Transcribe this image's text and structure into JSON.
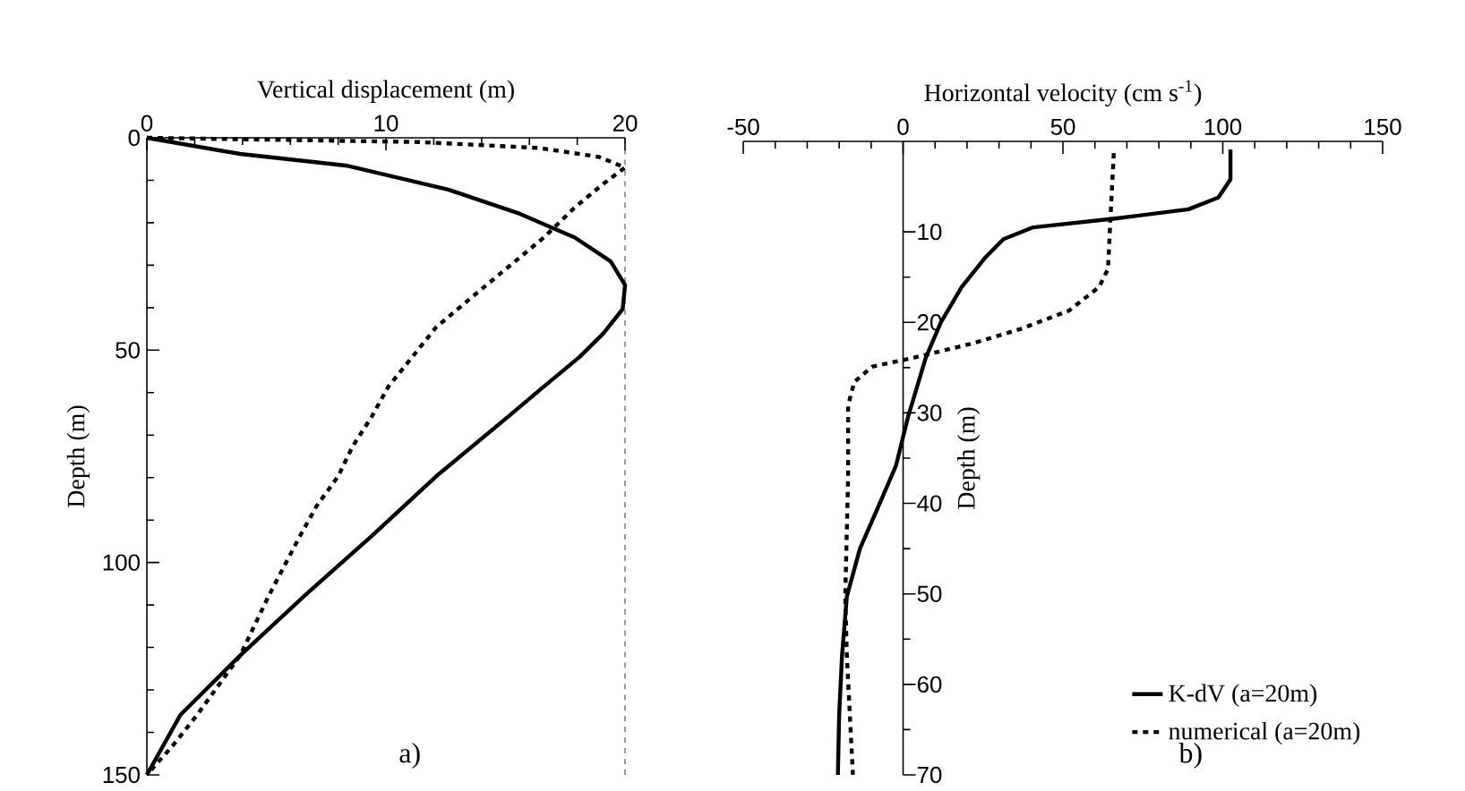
{
  "chart_data": [
    {
      "type": "line",
      "xlabel": "Vertical displacement (m)",
      "ylabel": "Depth (m)",
      "xlim": [
        0,
        20
      ],
      "xticks": [
        0,
        10,
        20
      ],
      "ylim": [
        150,
        0
      ],
      "yticks": [
        0,
        50,
        100,
        150
      ],
      "grid": false,
      "annotations": [
        "a)"
      ],
      "ref_lines": [
        {
          "axis": "x",
          "value": 20,
          "line_style": "dashed",
          "color": "#000000"
        }
      ],
      "series": [
        {
          "color": "#000000",
          "line_style": "solid",
          "x": [
            0,
            3.9,
            8.4,
            12.6,
            15.6,
            17.9,
            19.4,
            20,
            19.9,
            19.1,
            18.1,
            16.6,
            15.1,
            12.1,
            9.4,
            6.6,
            3.9,
            1.4,
            0
          ],
          "values": [
            0,
            3.8,
            6.6,
            12.2,
            17.9,
            23.5,
            29.1,
            34.7,
            40.3,
            46,
            51.6,
            58.6,
            65.7,
            79.7,
            93.8,
            107.8,
            121.9,
            135.9,
            150
          ]
        },
        {
          "color": "#000000",
          "line_style": "dashed",
          "x": [
            0,
            11.4,
            16.4,
            18.9,
            20,
            19.1,
            17.9,
            16.6,
            15.1,
            13.6,
            12.1,
            11.1,
            10.1,
            9.4,
            8.6,
            8,
            7.1,
            6.4,
            5.1,
            3.9,
            2.1,
            1.1,
            0
          ],
          "values": [
            0,
            1,
            2.4,
            4.5,
            7,
            10.8,
            16.4,
            23.5,
            30.5,
            37.5,
            44.6,
            51.6,
            58.6,
            65.7,
            72.7,
            79.7,
            86.7,
            93.8,
            107.8,
            121.9,
            135.9,
            143,
            150
          ]
        }
      ]
    },
    {
      "type": "line",
      "xlabel": "Horizontal velocity (cm s$^{-1}$)",
      "ylabel": "Depth (m)",
      "xlim": [
        -50,
        150
      ],
      "xticks": [
        -50,
        0,
        50,
        100,
        150
      ],
      "ylim": [
        70,
        0
      ],
      "yticks": [
        10,
        20,
        30,
        40,
        50,
        60,
        70
      ],
      "grid": false,
      "legend": "bottom right",
      "annotations": [
        "b)"
      ],
      "series": [
        {
          "name": "K-dV (a=20m)",
          "color": "#000000",
          "line_style": "solid",
          "x": [
            102.4,
            102.4,
            98.6,
            89.3,
            66.9,
            40.7,
            31.4,
            25.8,
            18.3,
            11.8,
            7.1,
            1.5,
            -2.2,
            -7.8,
            -13.5,
            -17.6,
            -19.1,
            -20,
            -20.4
          ],
          "values": [
            0.9,
            4.2,
            6.2,
            7.5,
            8.5,
            9.5,
            10.8,
            12.8,
            16.1,
            20,
            23.9,
            30.5,
            35.8,
            40.4,
            45,
            50.3,
            56.8,
            63.4,
            70
          ]
        },
        {
          "name": "numerical (a=20m)",
          "color": "#000000",
          "line_style": "dashed",
          "x": [
            65.9,
            65,
            64.1,
            61.3,
            51.9,
            37,
            22,
            3.4,
            -9.7,
            -15.3,
            -17.2,
            -17.2,
            -18.1,
            -17.6,
            -15.7
          ],
          "values": [
            1.3,
            7.5,
            14.1,
            16.1,
            18.7,
            20.7,
            22.3,
            23.9,
            24.9,
            26.6,
            29.2,
            37.1,
            50.3,
            56.8,
            70
          ]
        }
      ]
    }
  ]
}
